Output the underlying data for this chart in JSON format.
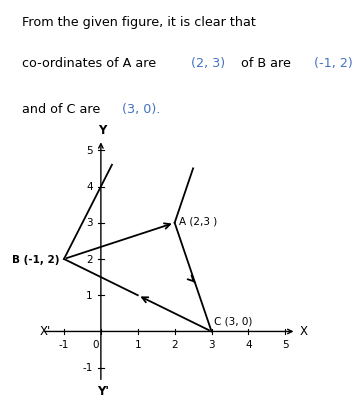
{
  "points": {
    "A": [
      2,
      3
    ],
    "B": [
      -1,
      2
    ],
    "C": [
      3,
      0
    ]
  },
  "xmin": -1.8,
  "xmax": 5.5,
  "ymin": -1.6,
  "ymax": 5.5,
  "xticks": [
    -1,
    0,
    1,
    2,
    3,
    4,
    5
  ],
  "yticks": [
    -1,
    1,
    2,
    3,
    4,
    5
  ],
  "line_color": "#000000",
  "label_A": "A (2,3 )",
  "label_B": "B (-1, 2)",
  "label_C": "C (3, 0)",
  "text_line1": "From the given figure, it is clear that",
  "text_line2_parts": [
    [
      "co-ordinates of A are ",
      "black"
    ],
    [
      "(2, 3)",
      "#4472c4"
    ],
    [
      " of B are ",
      "black"
    ],
    [
      "(-1, 2)",
      "#4472c4"
    ]
  ],
  "text_line3_parts": [
    [
      "and of C are ",
      "black"
    ],
    [
      "(3, 0).",
      "#4472c4"
    ]
  ]
}
